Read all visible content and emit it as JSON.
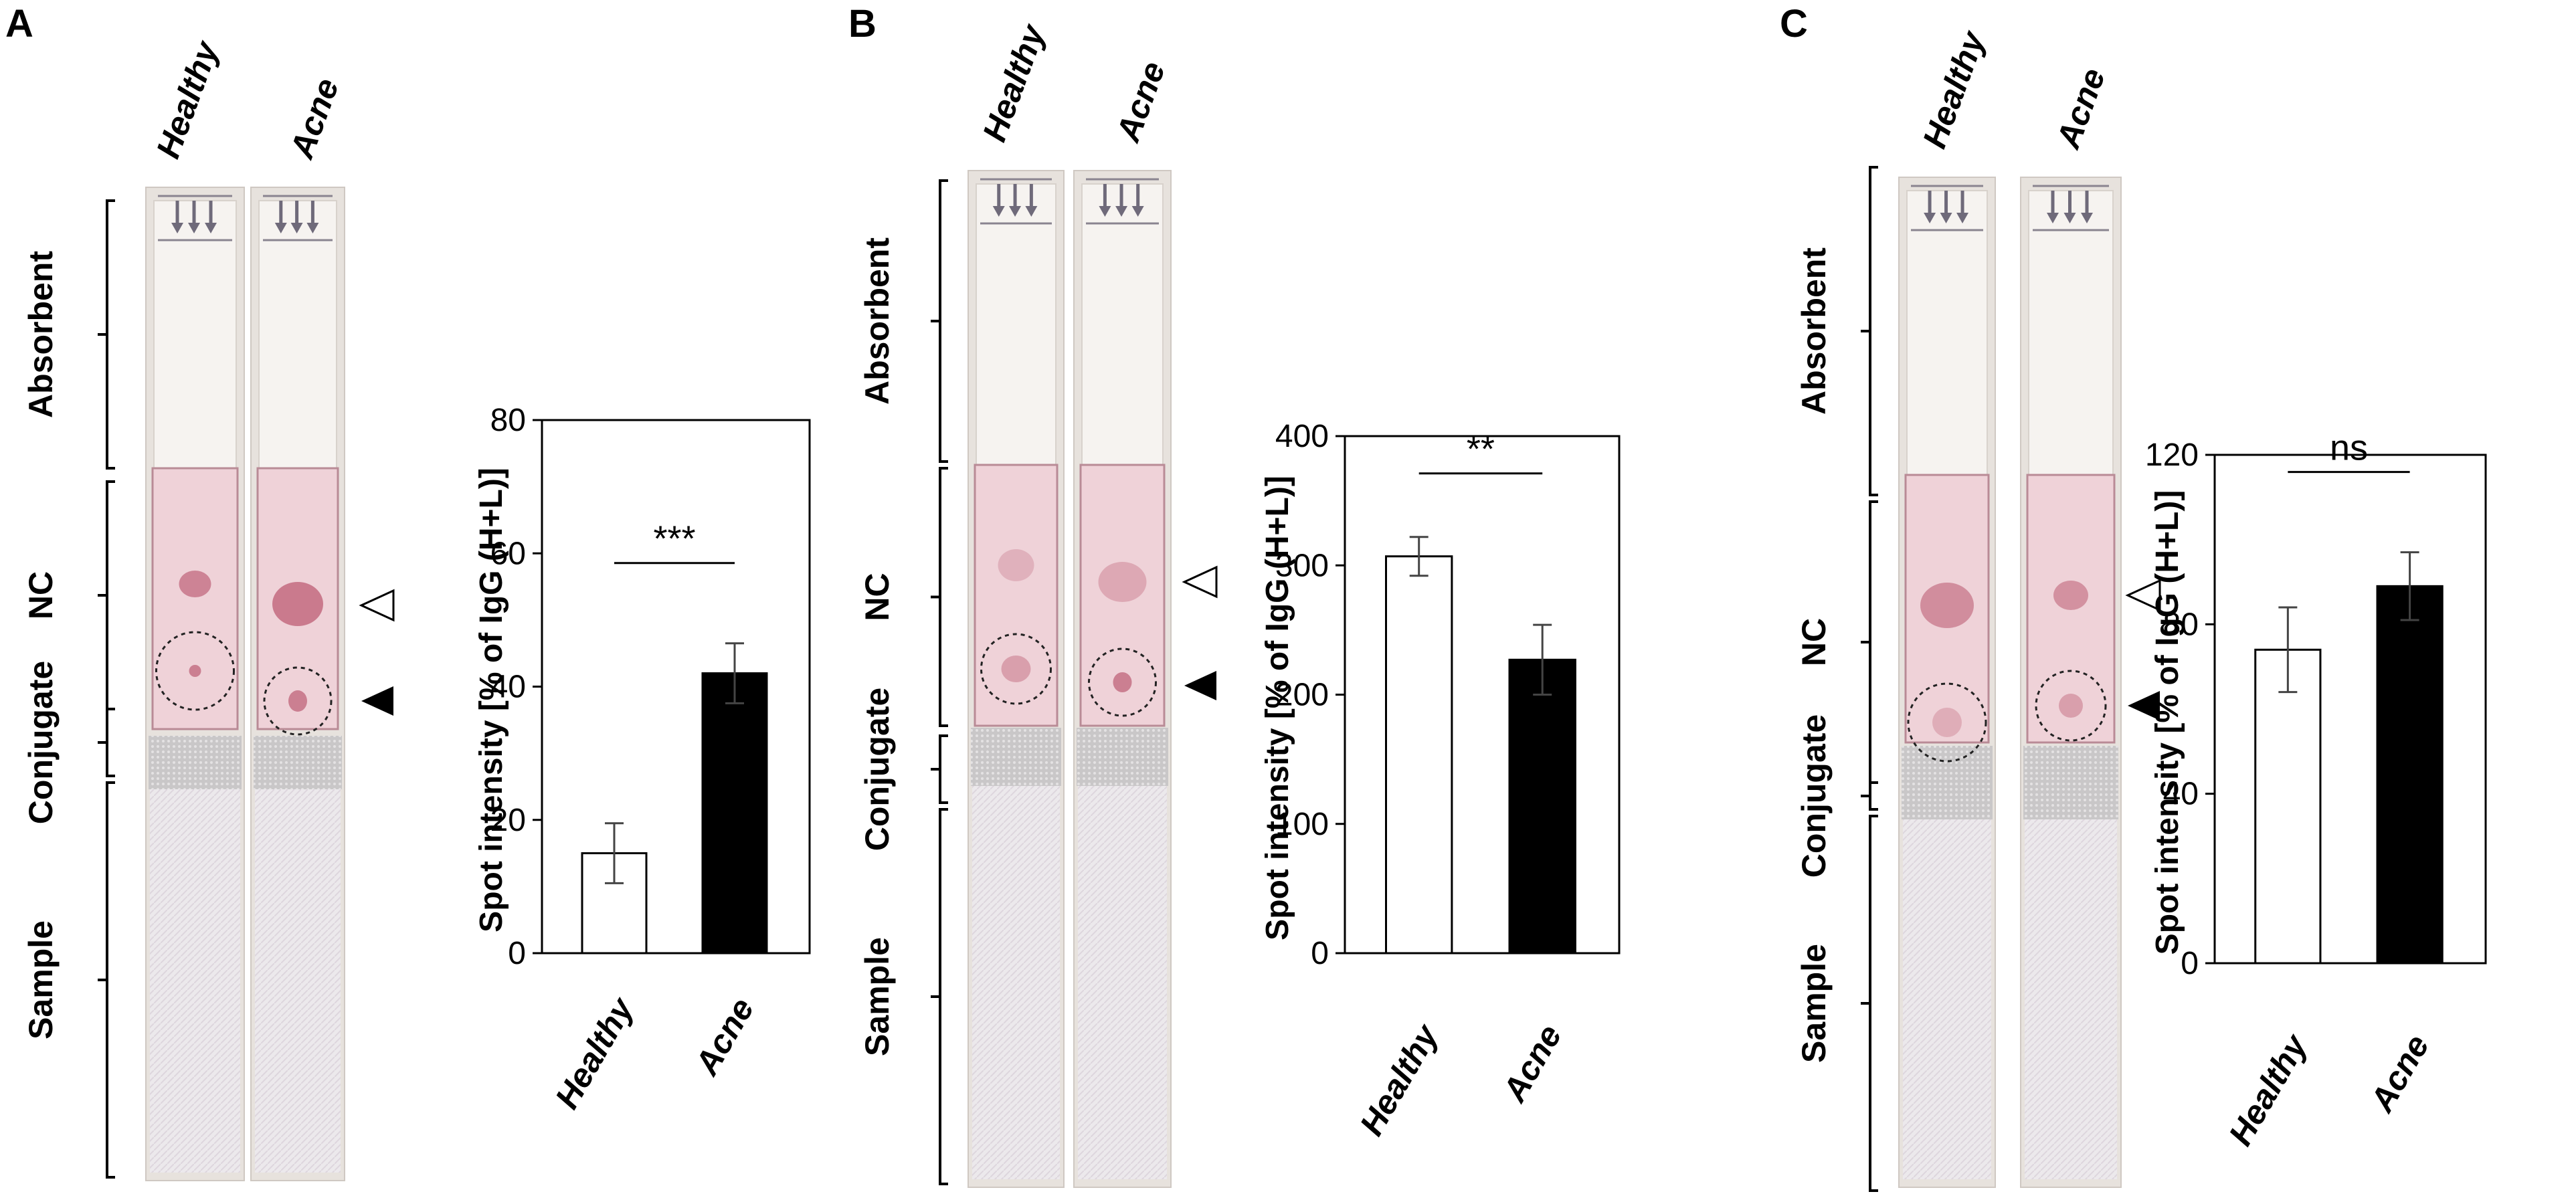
{
  "figure": {
    "strip_columns": [
      "Healthy",
      "Acne"
    ],
    "strip_regions": [
      "Absorbent",
      "NC",
      "Conjugate",
      "Sample"
    ]
  },
  "colors": {
    "healthy_bar": "#ffffff",
    "acne_bar": "#000000",
    "strip_background": "#e7e2dd",
    "strip_membrane": "#efd2d8",
    "spot": "#c77589"
  },
  "chart_data": [
    {
      "panel": "A",
      "type": "bar",
      "categories": [
        "Healthy",
        "Acne"
      ],
      "values": [
        15,
        42
      ],
      "errors": [
        4.5,
        4.5
      ],
      "ylabel": "Spot intensity [% of IgG (H+L)]",
      "ylim": [
        0,
        80
      ],
      "yticks": [
        0,
        20,
        40,
        60,
        80
      ],
      "significance": "***",
      "grid": false
    },
    {
      "panel": "B",
      "type": "bar",
      "categories": [
        "Healthy",
        "Acne"
      ],
      "values": [
        307,
        227
      ],
      "errors": [
        15,
        27
      ],
      "ylabel": "Spot intensity [% of IgG (H+L)]",
      "ylim": [
        0,
        400
      ],
      "yticks": [
        0,
        100,
        200,
        300,
        400
      ],
      "significance": "**",
      "grid": false
    },
    {
      "panel": "C",
      "type": "bar",
      "categories": [
        "Healthy",
        "Acne"
      ],
      "values": [
        74,
        89
      ],
      "errors": [
        10,
        8
      ],
      "ylabel": "Spot intensity [% of IgG (H+L)]",
      "ylim": [
        0,
        120
      ],
      "yticks": [
        0,
        40,
        80,
        120
      ],
      "significance": "ns",
      "grid": false
    }
  ]
}
